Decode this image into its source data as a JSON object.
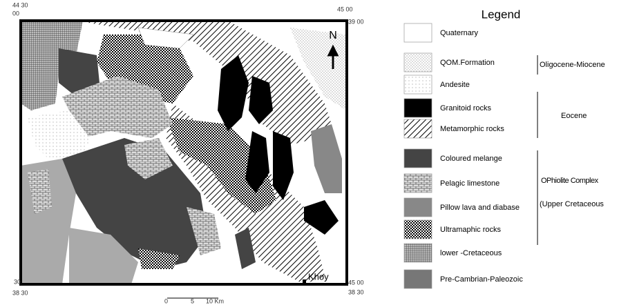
{
  "coordinates": {
    "top_left_lon": "44 30",
    "top_left_lat": "00",
    "top_right_lon": "45 00",
    "top_right_lat": "39 00",
    "bottom_left_lon": "30",
    "bottom_left_lat": "38 30",
    "bottom_right_lon": "45 00",
    "bottom_right_lat": "38 30"
  },
  "map": {
    "north": "N",
    "town": "Khoy",
    "scale": [
      "0",
      "5",
      "10 Km"
    ]
  },
  "legend": {
    "title": "Legend",
    "items": [
      "Quaternary",
      "QOM.Formation",
      "Andesite",
      "Granitoid rocks",
      "Metamorphic rocks",
      "Coloured melange",
      "Pelagic limestone",
      "Pillow  lava and diabase",
      "Ultramaphic rocks",
      "lower -Cretaceous",
      "Pre-Cambrian-Paleozoic"
    ],
    "groups": [
      "Oligocene-Miocene",
      "Eocene",
      "OPhiolite Complex",
      "(Upper Cretaceous"
    ]
  }
}
